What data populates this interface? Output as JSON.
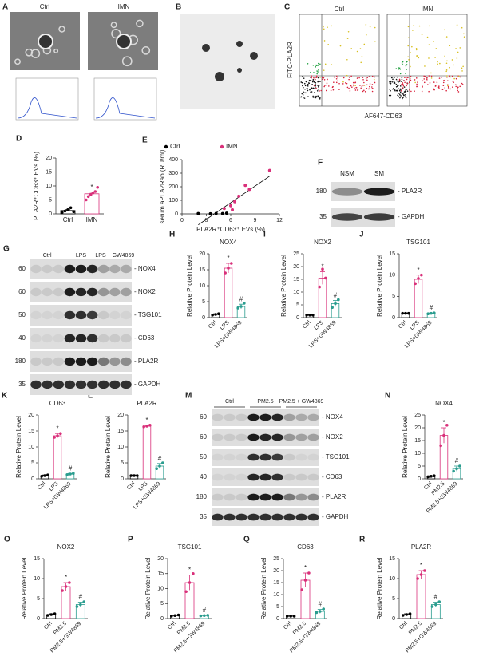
{
  "chart_data": [
    {
      "type": "bar",
      "panel": "D",
      "ylabel": "PLA2R⁺CD63⁺ EVs (%)",
      "categories": [
        "Ctrl",
        "IMN"
      ],
      "values": [
        1.2,
        7.2
      ],
      "errors": [
        0.3,
        0.6
      ],
      "points": [
        [
          0.5,
          1.0,
          1.5,
          2.2,
          0.8
        ],
        [
          5.0,
          6.2,
          7.0,
          7.5,
          8.0,
          9.5
        ]
      ],
      "annotations": [
        null,
        "*"
      ],
      "colors": [
        "#000000",
        "#d9307a"
      ],
      "ylim": [
        0,
        20
      ],
      "yticks": [
        0,
        5,
        10,
        15,
        20
      ]
    },
    {
      "type": "scatter",
      "panel": "E",
      "ylabel": "serum aPLA2Rab (RU/ml)",
      "xlabel": "PLA2R⁺CD63⁺ EVs (%)",
      "series": [
        {
          "name": "Ctrl",
          "color": "#000000",
          "x": [
            2,
            3.5,
            4.2,
            5,
            5.5
          ],
          "values": [
            2,
            1,
            3,
            2,
            5
          ]
        },
        {
          "name": "IMN",
          "color": "#d9307a",
          "x": [
            5.2,
            6,
            6.5,
            7,
            7.8,
            8.3,
            10.8,
            6.2
          ],
          "values": [
            40,
            60,
            90,
            130,
            210,
            180,
            320,
            30
          ]
        }
      ],
      "xlim": [
        0,
        12
      ],
      "xticks": [
        0,
        3,
        6,
        9,
        12
      ],
      "ylim": [
        0,
        400
      ],
      "yticks": [
        0,
        100,
        200,
        300,
        400
      ]
    },
    {
      "type": "bar",
      "panel": "H",
      "title": "NOX4",
      "ylabel": "Relative Protein Level",
      "categories": [
        "Ctrl",
        "LPS",
        "LPS+GW4869"
      ],
      "values": [
        1,
        15.5,
        3.5
      ],
      "errors": [
        0.2,
        1.5,
        0.7
      ],
      "points": [
        [
          0.8,
          1,
          1.2
        ],
        [
          14,
          15.5,
          17
        ],
        [
          3,
          3.5,
          4.5
        ]
      ],
      "annotations": [
        null,
        "*",
        "#"
      ],
      "colors": [
        "#000000",
        "#d9307a",
        "#2a9d8f"
      ],
      "ylim": [
        0,
        20
      ],
      "yticks": [
        0,
        5,
        10,
        15,
        20
      ]
    },
    {
      "type": "bar",
      "panel": "I",
      "title": "NOX2",
      "ylabel": "Relative Protein Level",
      "categories": [
        "Ctrl",
        "LPS",
        "LPS+GW4869"
      ],
      "values": [
        1,
        15.5,
        5.5
      ],
      "errors": [
        0.1,
        2.5,
        1.2
      ],
      "points": [
        [
          1,
          1,
          1
        ],
        [
          12,
          19,
          15.5
        ],
        [
          4,
          5.5,
          7
        ]
      ],
      "annotations": [
        null,
        "*",
        "#"
      ],
      "colors": [
        "#000000",
        "#d9307a",
        "#2a9d8f"
      ],
      "ylim": [
        0,
        25
      ],
      "yticks": [
        0,
        5,
        10,
        15,
        20,
        25
      ]
    },
    {
      "type": "bar",
      "panel": "J",
      "title": "TSG101",
      "ylabel": "Relative Protein Level",
      "categories": [
        "Ctrl",
        "LPS",
        "LPS+GW4869"
      ],
      "values": [
        1,
        9,
        1
      ],
      "errors": [
        0.1,
        1,
        0.1
      ],
      "points": [
        [
          1,
          1,
          1
        ],
        [
          8,
          9.2,
          10
        ],
        [
          0.9,
          1,
          1.1
        ]
      ],
      "annotations": [
        null,
        "*",
        "#"
      ],
      "colors": [
        "#000000",
        "#d9307a",
        "#2a9d8f"
      ],
      "ylim": [
        0,
        15
      ],
      "yticks": [
        0,
        5,
        10,
        15
      ]
    },
    {
      "type": "bar",
      "panel": "K",
      "title": "CD63",
      "ylabel": "Relative Protein Level",
      "categories": [
        "Ctrl",
        "LPS",
        "LPS+GW4869"
      ],
      "values": [
        1,
        13.5,
        1.5
      ],
      "errors": [
        0.2,
        0.7,
        0.2
      ],
      "points": [
        [
          0.8,
          1,
          1.2
        ],
        [
          13,
          13.5,
          14.2
        ],
        [
          1.3,
          1.5,
          1.7
        ]
      ],
      "annotations": [
        null,
        "*",
        "#"
      ],
      "colors": [
        "#000000",
        "#d9307a",
        "#2a9d8f"
      ],
      "ylim": [
        0,
        20
      ],
      "yticks": [
        0,
        5,
        10,
        15,
        20
      ]
    },
    {
      "type": "bar",
      "panel": "L",
      "title": "PLA2R",
      "ylabel": "Relative Protein Level",
      "categories": [
        "Ctrl",
        "LPS",
        "LPS+GW4869"
      ],
      "values": [
        1,
        16.5,
        4
      ],
      "errors": [
        0.2,
        0.3,
        0.8
      ],
      "points": [
        [
          1,
          1,
          1
        ],
        [
          16.3,
          16.5,
          16.8
        ],
        [
          3.2,
          4,
          5
        ]
      ],
      "annotations": [
        null,
        "*",
        "#"
      ],
      "colors": [
        "#000000",
        "#d9307a",
        "#2a9d8f"
      ],
      "ylim": [
        0,
        20
      ],
      "yticks": [
        0,
        5,
        10,
        15,
        20
      ]
    },
    {
      "type": "bar",
      "panel": "N",
      "title": "NOX4",
      "ylabel": "Relative Protein Level",
      "categories": [
        "Ctrl",
        "PM2.5",
        "PM2.5+GW4869"
      ],
      "values": [
        1,
        17,
        4
      ],
      "errors": [
        0.2,
        3,
        1
      ],
      "points": [
        [
          0.8,
          1,
          1.2
        ],
        [
          13,
          17,
          21
        ],
        [
          3,
          4,
          5
        ]
      ],
      "annotations": [
        null,
        "*",
        "#"
      ],
      "colors": [
        "#000000",
        "#d9307a",
        "#2a9d8f"
      ],
      "ylim": [
        0,
        25
      ],
      "yticks": [
        0,
        5,
        10,
        15,
        20,
        25
      ]
    },
    {
      "type": "bar",
      "panel": "O",
      "title": "NOX2",
      "ylabel": "Relative Protein Level",
      "categories": [
        "Ctrl",
        "PM2.5",
        "PM2.5+GW4869"
      ],
      "values": [
        1,
        8,
        3.5
      ],
      "errors": [
        0.2,
        1,
        0.6
      ],
      "points": [
        [
          0.8,
          1,
          1.2
        ],
        [
          7,
          8,
          9
        ],
        [
          3,
          3.5,
          4.2
        ]
      ],
      "annotations": [
        null,
        "*",
        "#"
      ],
      "colors": [
        "#000000",
        "#d9307a",
        "#2a9d8f"
      ],
      "ylim": [
        0,
        15
      ],
      "yticks": [
        0,
        5,
        10,
        15
      ]
    },
    {
      "type": "bar",
      "panel": "P",
      "title": "TSG101",
      "ylabel": "Relative Protein Level",
      "categories": [
        "Ctrl",
        "PM2.5",
        "PM2.5+GW4869"
      ],
      "values": [
        1,
        12,
        1
      ],
      "errors": [
        0.2,
        2.5,
        0.1
      ],
      "points": [
        [
          0.8,
          1,
          1.2
        ],
        [
          9,
          12,
          15
        ],
        [
          0.9,
          1,
          1.1
        ]
      ],
      "annotations": [
        null,
        "*",
        "#"
      ],
      "colors": [
        "#000000",
        "#d9307a",
        "#2a9d8f"
      ],
      "ylim": [
        0,
        20
      ],
      "yticks": [
        0,
        5,
        10,
        15,
        20
      ]
    },
    {
      "type": "bar",
      "panel": "Q",
      "title": "CD63",
      "ylabel": "Relative Protein Level",
      "categories": [
        "Ctrl",
        "PM2.5",
        "PM2.5+GW4869"
      ],
      "values": [
        1,
        16,
        3
      ],
      "errors": [
        0.1,
        3,
        0.8
      ],
      "points": [
        [
          1,
          1,
          1
        ],
        [
          12,
          16,
          19
        ],
        [
          2.5,
          3,
          4
        ]
      ],
      "annotations": [
        null,
        "*",
        "#"
      ],
      "colors": [
        "#000000",
        "#d9307a",
        "#2a9d8f"
      ],
      "ylim": [
        0,
        25
      ],
      "yticks": [
        0,
        5,
        10,
        15,
        20,
        25
      ]
    },
    {
      "type": "bar",
      "panel": "R",
      "title": "PLA2R",
      "ylabel": "Relative Protein Level",
      "categories": [
        "Ctrl",
        "PM2.5",
        "PM2.5+GW4869"
      ],
      "values": [
        1,
        11,
        3.5
      ],
      "errors": [
        0.2,
        1,
        0.6
      ],
      "points": [
        [
          0.8,
          1,
          1.2
        ],
        [
          10,
          11,
          12
        ],
        [
          3,
          3.5,
          4.2
        ]
      ],
      "annotations": [
        null,
        "*",
        "#"
      ],
      "colors": [
        "#000000",
        "#d9307a",
        "#2a9d8f"
      ],
      "ylim": [
        0,
        15
      ],
      "yticks": [
        0,
        5,
        10,
        15
      ]
    }
  ],
  "panel_a": {
    "label": "A",
    "titles": [
      "Ctrl",
      "IMN"
    ]
  },
  "panel_b": {
    "label": "B"
  },
  "panel_c": {
    "label": "C",
    "titles": [
      "Ctrl",
      "IMN"
    ],
    "ylabel": "FITC-PLA2R",
    "xlabel": "AF647-CD63"
  },
  "panel_f": {
    "label": "F",
    "groups": [
      "NSM",
      "SM"
    ],
    "rows": [
      {
        "size": 180,
        "name": "- PLA2R"
      },
      {
        "size": 35,
        "name": "- GAPDH"
      }
    ]
  },
  "panel_g": {
    "label": "G",
    "groups": [
      "Ctrl",
      "LPS",
      "LPS + GW4869"
    ],
    "rows": [
      {
        "size": 60,
        "name": "- NOX4"
      },
      {
        "size": 60,
        "name": "- NOX2"
      },
      {
        "size": 50,
        "name": "- TSG101"
      },
      {
        "size": 40,
        "name": "- CD63"
      },
      {
        "size": 180,
        "name": "- PLA2R"
      },
      {
        "size": 35,
        "name": "- GAPDH"
      }
    ]
  },
  "panel_m": {
    "label": "M",
    "groups": [
      "Ctrl",
      "PM2.5",
      "PM2.5 + GW4869"
    ],
    "rows": [
      {
        "size": 60,
        "name": "- NOX4"
      },
      {
        "size": 60,
        "name": "- NOX2"
      },
      {
        "size": 50,
        "name": "- TSG101"
      },
      {
        "size": 40,
        "name": "- CD63"
      },
      {
        "size": 180,
        "name": "- PLA2R"
      },
      {
        "size": 35,
        "name": "- GAPDH"
      }
    ]
  }
}
